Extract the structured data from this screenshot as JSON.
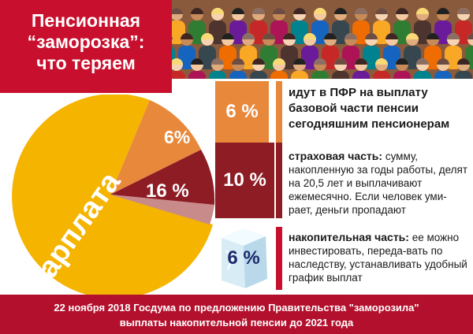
{
  "title": {
    "line1": "Пенсионная",
    "line2": "“заморозка”:",
    "line3": "что теряем"
  },
  "pie": {
    "main_label": "зарплата",
    "slice_6": "6%",
    "slice_16": "16 %",
    "colors": {
      "main": "#f5b400",
      "orange": "#e8883a",
      "red": "#8d1c24",
      "pink": "#c98a8a"
    }
  },
  "rows": [
    {
      "percent": "6 %",
      "heading": "идут в ПФР на выплату базовой части пенсии сегодняшним пенсионерам",
      "body": ""
    },
    {
      "percent": "10 %",
      "heading": "страховая часть:",
      "body": " сумму, накопленную за годы работы, делят на 20,5 лет и выплачивают ежемесячно. Если человек уми-рает, деньги пропадают"
    },
    {
      "percent": "6 %",
      "heading": "накопительная часть:",
      "body": " ее можно инвестировать, переда-вать по наследству, устанавливать удобный график выплат"
    }
  ],
  "footer": {
    "line1": "22 ноября 2018 Госдума  по предложению Правительства \"заморозила\"",
    "line2": "выплаты накопительной пенсии до 2021 года"
  }
}
